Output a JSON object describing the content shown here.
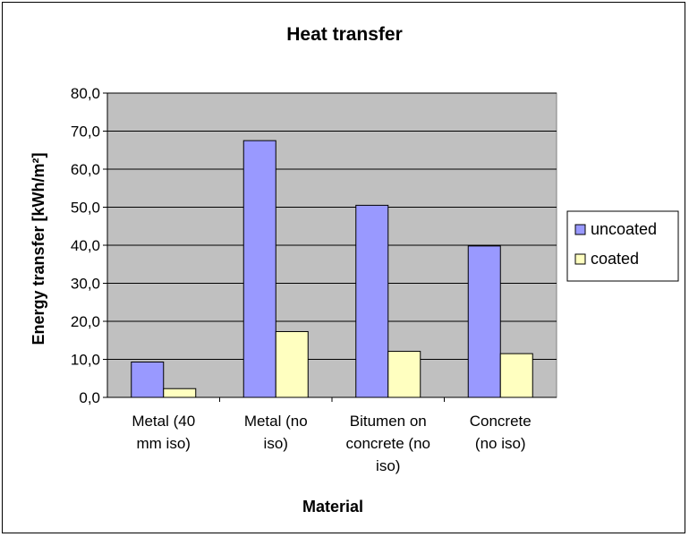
{
  "chart_data": {
    "type": "bar",
    "title": "Heat transfer",
    "xlabel": "Material",
    "ylabel": "Energy transfer [kWh/m²]",
    "ylim": [
      0,
      80
    ],
    "yticks": [
      "0,0",
      "10,0",
      "20,0",
      "30,0",
      "40,0",
      "50,0",
      "60,0",
      "70,0",
      "80,0"
    ],
    "categories": [
      [
        "Metal (40",
        "mm iso)"
      ],
      [
        "Metal (no",
        "iso)"
      ],
      [
        "Bitumen on",
        "concrete (no",
        "iso)"
      ],
      [
        "Concrete",
        "(no iso)"
      ]
    ],
    "series": [
      {
        "name": "uncoated",
        "color": "#9999ff",
        "values": [
          9.3,
          67.5,
          50.5,
          39.8
        ]
      },
      {
        "name": "coated",
        "color": "#ffffc0",
        "values": [
          2.3,
          17.3,
          12.1,
          11.5
        ]
      }
    ],
    "plot_background": "#c0c0c0",
    "grid": true,
    "legend_position": "right"
  }
}
